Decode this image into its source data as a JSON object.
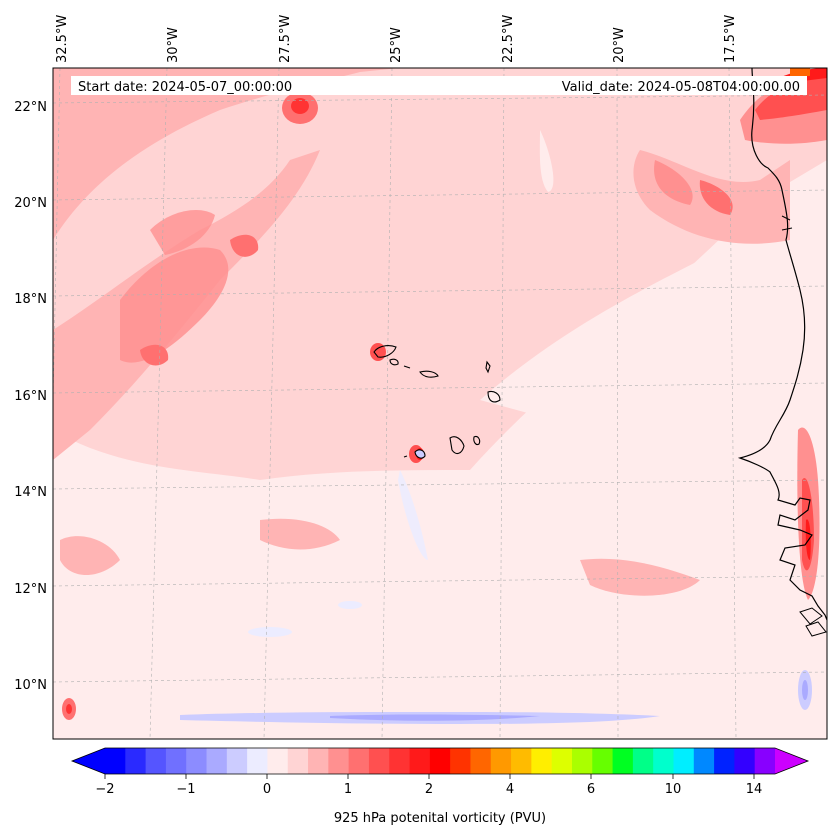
{
  "map": {
    "start_date": "Start date: 2024-05-07_00:00:00",
    "valid_date": "Valid_date: 2024-05-08T04:00:00.00",
    "lon_labels": [
      "32.5°W",
      "30°W",
      "27.5°W",
      "25°W",
      "22.5°W",
      "20°W",
      "17.5°W"
    ],
    "lat_labels": [
      "22°N",
      "20°N",
      "18°N",
      "16°N",
      "14°N",
      "12°N",
      "10°N"
    ]
  },
  "colorbar": {
    "title": "925 hPa potenital vorticity (PVU)",
    "tick_labels": [
      "−2",
      "−1",
      "0",
      "1",
      "2",
      "4",
      "6",
      "10",
      "14"
    ],
    "colors": [
      "#0000ff",
      "#2a2aff",
      "#5555ff",
      "#7070ff",
      "#8c8cff",
      "#aaaaff",
      "#ccccff",
      "#ececff",
      "#ffecec",
      "#ffd4d4",
      "#ffb4b4",
      "#ff9090",
      "#ff7070",
      "#ff5050",
      "#ff3333",
      "#ff1a1a",
      "#ff0000",
      "#ff3300",
      "#ff6600",
      "#ff9900",
      "#ffbb00",
      "#ffee00",
      "#ddff00",
      "#aaff00",
      "#66ff00",
      "#00ff22",
      "#00ff88",
      "#00ffcc",
      "#00eeff",
      "#0088ff",
      "#0022ff",
      "#3300ff",
      "#8800ff"
    ],
    "under_color": "#0000ff",
    "over_color": "#cc00ff"
  }
}
